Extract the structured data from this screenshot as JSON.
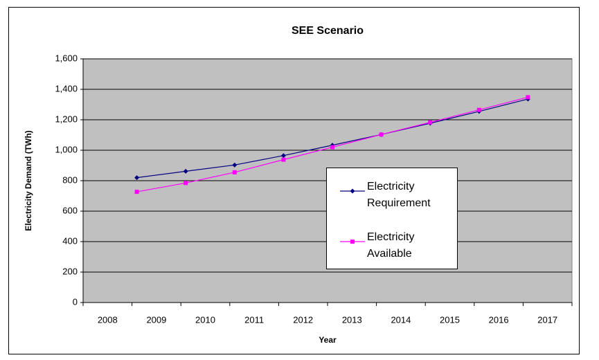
{
  "chart_data": {
    "type": "line",
    "title": "SEE Scenario",
    "x_label": "Year",
    "y_label": "Electricity Demand (TWh)",
    "categories": [
      "2008",
      "2009",
      "2010",
      "2011",
      "2012",
      "2013",
      "2014",
      "2015",
      "2016",
      "2017"
    ],
    "series": [
      {
        "name": "Electricity Requirement",
        "color": "#000080",
        "marker": "diamond",
        "values": [
          null,
          820,
          862,
          903,
          965,
          1033,
          1103,
          1177,
          1255,
          1336
        ]
      },
      {
        "name": "Electricity Available",
        "color": "#ff00ff",
        "marker": "square",
        "values": [
          null,
          727,
          785,
          855,
          938,
          1020,
          1103,
          1183,
          1265,
          1348
        ]
      }
    ],
    "ylim": [
      0,
      1600
    ],
    "yticks": [
      0,
      200,
      400,
      600,
      800,
      {
        "value": 1000,
        "label": "1,000"
      },
      {
        "value": 1200,
        "label": "1,200"
      },
      {
        "value": 1400,
        "label": "1,400"
      },
      {
        "value": 1600,
        "label": "1,600"
      }
    ],
    "grid": true,
    "plot_background": "#c0c0c0",
    "legend": "center"
  }
}
